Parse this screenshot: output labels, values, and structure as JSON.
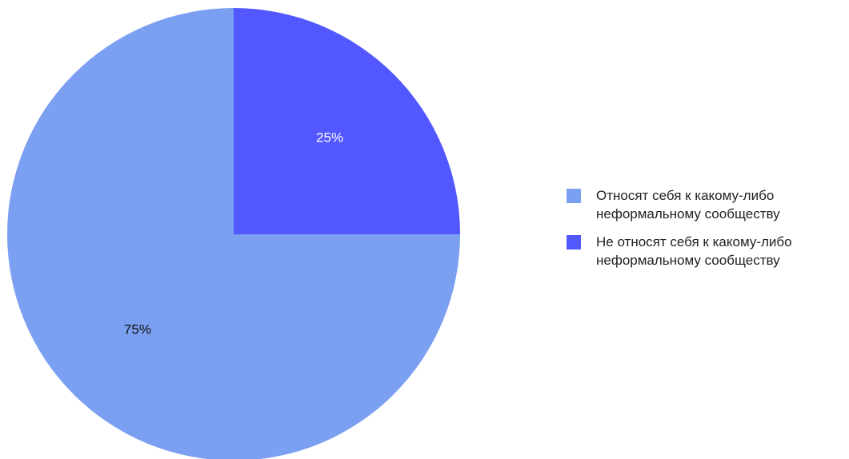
{
  "chart_data": {
    "type": "pie",
    "slices": [
      {
        "name": "Не относят себя к какому-либо\nнеформальному сообществу",
        "value": 25,
        "label": "25%",
        "color": "#5257FF",
        "label_color": "#ffffff"
      },
      {
        "name": "Относят себя к какому-либо\nнеформальному сообществу",
        "value": 75,
        "label": "75%",
        "color": "#7BA0F2",
        "label_color": "#111111"
      }
    ],
    "start_angle": "top",
    "direction": "clockwise",
    "legend": {
      "position": "right",
      "order": [
        1,
        0
      ]
    }
  }
}
